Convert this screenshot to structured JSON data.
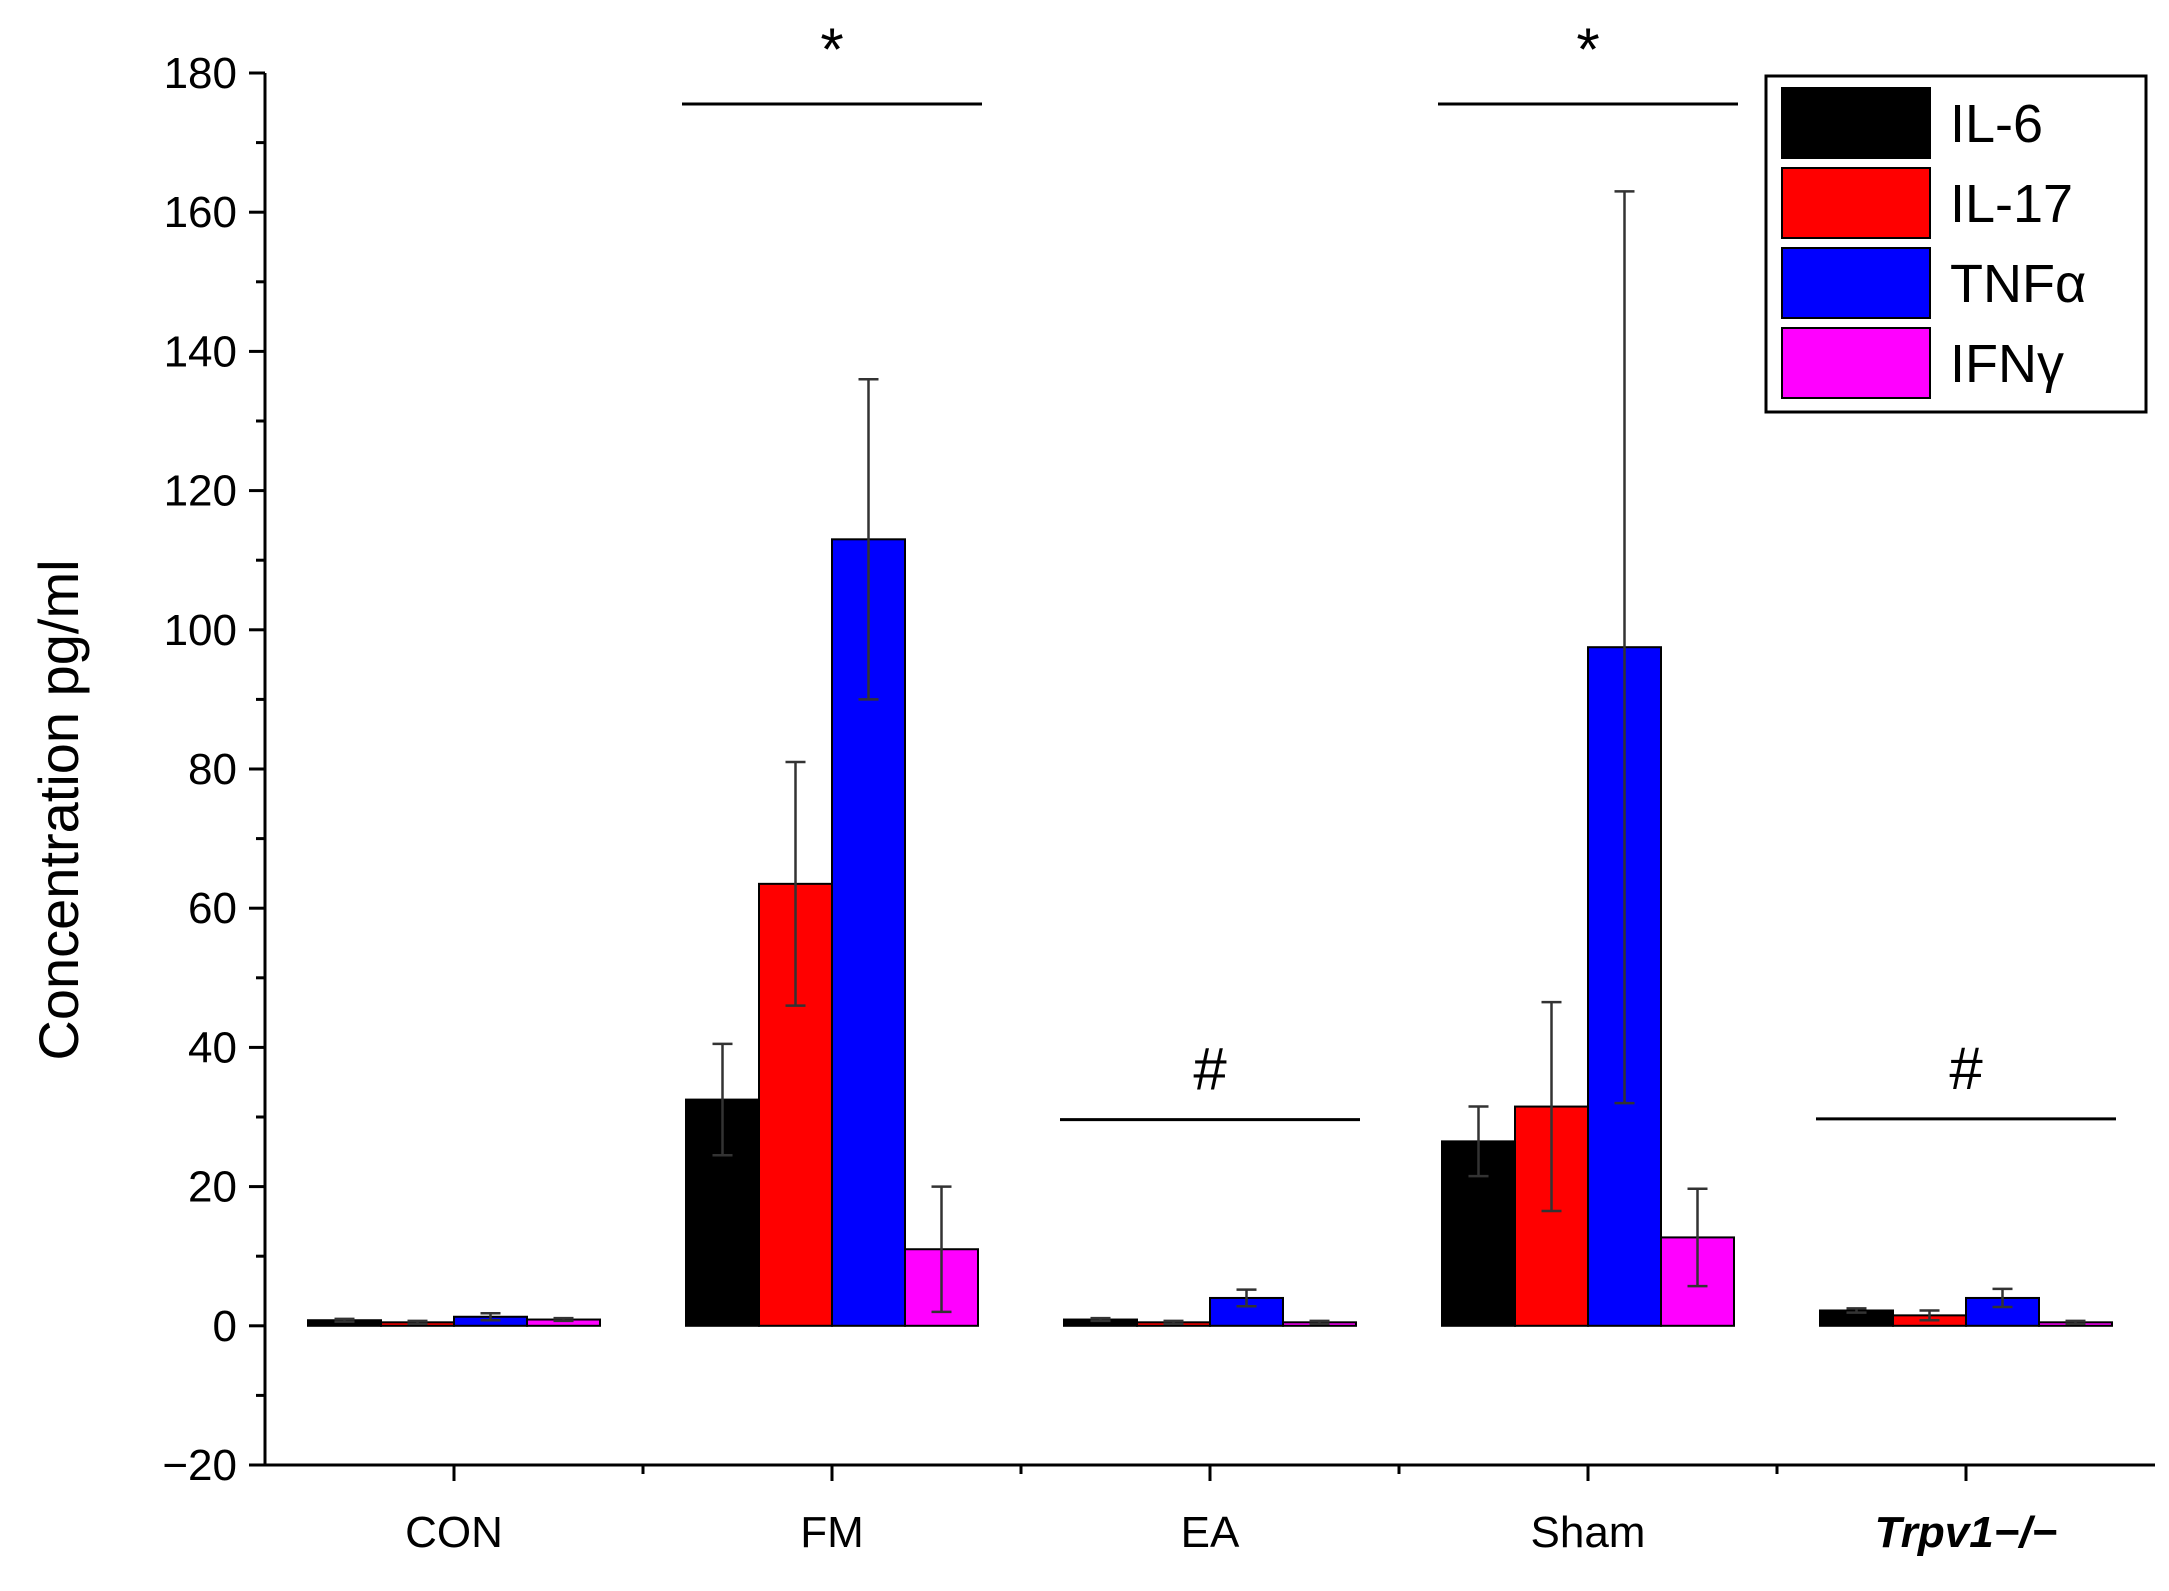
{
  "chart_data": {
    "type": "bar",
    "title": "",
    "xlabel": "",
    "ylabel": "Concentration pg/ml",
    "ylim": [
      -20,
      180
    ],
    "yticks": [
      -20,
      0,
      20,
      40,
      60,
      80,
      100,
      120,
      140,
      160,
      180
    ],
    "ytick_labels": [
      "−20",
      "0",
      "20",
      "40",
      "60",
      "80",
      "100",
      "120",
      "140",
      "160",
      "180"
    ],
    "categories": [
      "CON",
      "FM",
      "EA",
      "Sham",
      "Trpv1−/−"
    ],
    "series": [
      {
        "name": "IL-6",
        "color": "#000000",
        "values": [
          0.8,
          32.5,
          0.9,
          26.5,
          2.2
        ],
        "errors": [
          0.2,
          8.0,
          0.2,
          5.0,
          0.3
        ]
      },
      {
        "name": "IL-17",
        "color": "#ff0000",
        "values": [
          0.5,
          63.5,
          0.5,
          31.5,
          1.5
        ],
        "errors": [
          0.2,
          17.5,
          0.2,
          15.0,
          0.7
        ]
      },
      {
        "name": "TNFα",
        "color": "#0000ff",
        "values": [
          1.3,
          113.0,
          4.0,
          97.5,
          4.0
        ],
        "errors": [
          0.5,
          23.0,
          1.2,
          65.5,
          1.3
        ]
      },
      {
        "name": "IFNγ",
        "color": "#ff00ff",
        "values": [
          0.9,
          11.0,
          0.5,
          12.7,
          0.5
        ],
        "errors": [
          0.2,
          9.0,
          0.2,
          7.0,
          0.2
        ]
      }
    ],
    "annotations": [
      {
        "category": "FM",
        "text": "*"
      },
      {
        "category": "EA",
        "text": "#"
      },
      {
        "category": "Sham",
        "text": "*"
      },
      {
        "category": "Trpv1−/−",
        "text": "#"
      }
    ],
    "legend_position": "top-right",
    "grid": false
  }
}
